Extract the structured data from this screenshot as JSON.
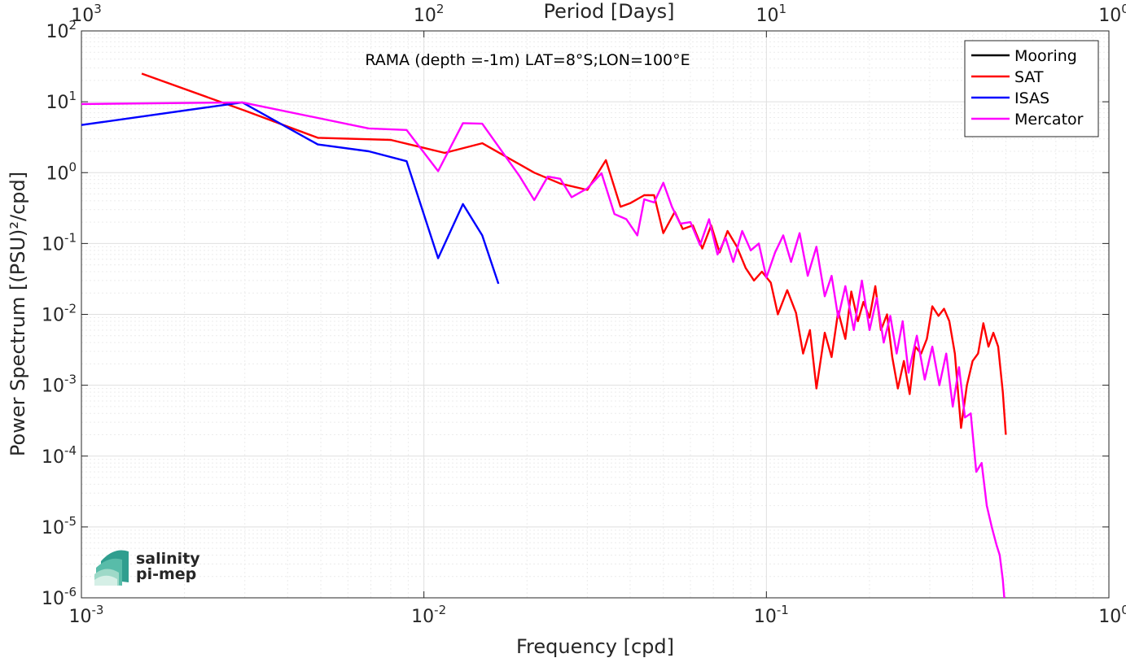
{
  "chart_data": {
    "type": "line",
    "title": "RAMA (depth =-1m) LAT=8°S;LON=100°E",
    "xlabel": "Frequency [cpd]",
    "ylabel": "Power Spectrum [(PSU)²/cpd]",
    "top_xlabel": "Period [Days]",
    "xscale": "log",
    "yscale": "log",
    "xlim": [
      0.001,
      1
    ],
    "ylim": [
      1e-06,
      100
    ],
    "grid": true,
    "legend_position": "top-right",
    "x_ticks": [
      {
        "value": 0.001,
        "base": "10",
        "exp": "-3"
      },
      {
        "value": 0.01,
        "base": "10",
        "exp": "-2"
      },
      {
        "value": 0.1,
        "base": "10",
        "exp": "-1"
      },
      {
        "value": 1,
        "base": "10",
        "exp": "0"
      }
    ],
    "top_ticks": [
      {
        "value": 0.001,
        "base": "10",
        "exp": "3"
      },
      {
        "value": 0.01,
        "base": "10",
        "exp": "2"
      },
      {
        "value": 0.1,
        "base": "10",
        "exp": "1"
      },
      {
        "value": 1,
        "base": "10",
        "exp": "0"
      }
    ],
    "y_ticks": [
      {
        "value": 100,
        "base": "10",
        "exp": "2"
      },
      {
        "value": 10,
        "base": "10",
        "exp": "1"
      },
      {
        "value": 1,
        "base": "10",
        "exp": "0"
      },
      {
        "value": 0.1,
        "base": "10",
        "exp": "-1"
      },
      {
        "value": 0.01,
        "base": "10",
        "exp": "-2"
      },
      {
        "value": 0.001,
        "base": "10",
        "exp": "-3"
      },
      {
        "value": 0.0001,
        "base": "10",
        "exp": "-4"
      },
      {
        "value": 1e-05,
        "base": "10",
        "exp": "-5"
      },
      {
        "value": 1e-06,
        "base": "10",
        "exp": "-6"
      }
    ],
    "series": [
      {
        "name": "Mooring",
        "color": "#000000",
        "points": []
      },
      {
        "name": "SAT",
        "color": "#ff0000",
        "points": [
          [
            0.0015,
            25
          ],
          [
            0.003,
            7.5
          ],
          [
            0.0049,
            3.1
          ],
          [
            0.008,
            2.9
          ],
          [
            0.0115,
            1.9
          ],
          [
            0.0148,
            2.6
          ],
          [
            0.021,
            1
          ],
          [
            0.025,
            0.7
          ],
          [
            0.03,
            0.57
          ],
          [
            0.034,
            1.5
          ],
          [
            0.0375,
            0.33
          ],
          [
            0.04,
            0.37
          ],
          [
            0.044,
            0.48
          ],
          [
            0.047,
            0.48
          ],
          [
            0.05,
            0.14
          ],
          [
            0.054,
            0.28
          ],
          [
            0.057,
            0.16
          ],
          [
            0.061,
            0.18
          ],
          [
            0.065,
            0.085
          ],
          [
            0.069,
            0.18
          ],
          [
            0.073,
            0.075
          ],
          [
            0.077,
            0.15
          ],
          [
            0.082,
            0.09
          ],
          [
            0.087,
            0.045
          ],
          [
            0.092,
            0.03
          ],
          [
            0.097,
            0.04
          ],
          [
            0.103,
            0.028
          ],
          [
            0.108,
            0.01
          ],
          [
            0.115,
            0.022
          ],
          [
            0.122,
            0.0105
          ],
          [
            0.128,
            0.0028
          ],
          [
            0.134,
            0.006
          ],
          [
            0.14,
            0.0009
          ],
          [
            0.148,
            0.0055
          ],
          [
            0.155,
            0.0025
          ],
          [
            0.162,
            0.011
          ],
          [
            0.17,
            0.0045
          ],
          [
            0.177,
            0.021
          ],
          [
            0.185,
            0.008
          ],
          [
            0.192,
            0.015
          ],
          [
            0.2,
            0.009
          ],
          [
            0.208,
            0.025
          ],
          [
            0.216,
            0.006
          ],
          [
            0.225,
            0.01
          ],
          [
            0.233,
            0.0025
          ],
          [
            0.242,
            0.0009
          ],
          [
            0.252,
            0.0022
          ],
          [
            0.262,
            0.00075
          ],
          [
            0.272,
            0.0035
          ],
          [
            0.283,
            0.0028
          ],
          [
            0.294,
            0.0045
          ],
          [
            0.305,
            0.013
          ],
          [
            0.318,
            0.0095
          ],
          [
            0.33,
            0.012
          ],
          [
            0.342,
            0.008
          ],
          [
            0.355,
            0.0028
          ],
          [
            0.37,
            0.00025
          ],
          [
            0.385,
            0.001
          ],
          [
            0.4,
            0.0022
          ],
          [
            0.415,
            0.0028
          ],
          [
            0.43,
            0.0075
          ],
          [
            0.445,
            0.0035
          ],
          [
            0.46,
            0.0055
          ],
          [
            0.475,
            0.0035
          ],
          [
            0.49,
            0.0008
          ],
          [
            0.5,
            0.0002
          ]
        ]
      },
      {
        "name": "ISAS",
        "color": "#0000ff",
        "points": [
          [
            0.001,
            4.7
          ],
          [
            0.00295,
            9.8
          ],
          [
            0.0049,
            2.5
          ],
          [
            0.0069,
            2
          ],
          [
            0.0089,
            1.45
          ],
          [
            0.011,
            0.062
          ],
          [
            0.013,
            0.36
          ],
          [
            0.0148,
            0.13
          ],
          [
            0.0165,
            0.027
          ]
        ]
      },
      {
        "name": "Mercator",
        "color": "#ff00ff",
        "points": [
          [
            0.001,
            9.3
          ],
          [
            0.00295,
            9.8
          ],
          [
            0.0069,
            4.2
          ],
          [
            0.0089,
            4
          ],
          [
            0.011,
            1.05
          ],
          [
            0.013,
            5
          ],
          [
            0.0148,
            4.9
          ],
          [
            0.019,
            0.9
          ],
          [
            0.021,
            0.41
          ],
          [
            0.023,
            0.88
          ],
          [
            0.025,
            0.82
          ],
          [
            0.027,
            0.45
          ],
          [
            0.03,
            0.6
          ],
          [
            0.033,
            0.98
          ],
          [
            0.036,
            0.26
          ],
          [
            0.039,
            0.22
          ],
          [
            0.042,
            0.13
          ],
          [
            0.044,
            0.42
          ],
          [
            0.047,
            0.38
          ],
          [
            0.05,
            0.72
          ],
          [
            0.053,
            0.33
          ],
          [
            0.056,
            0.19
          ],
          [
            0.06,
            0.2
          ],
          [
            0.064,
            0.095
          ],
          [
            0.068,
            0.22
          ],
          [
            0.072,
            0.07
          ],
          [
            0.076,
            0.12
          ],
          [
            0.08,
            0.055
          ],
          [
            0.085,
            0.15
          ],
          [
            0.09,
            0.08
          ],
          [
            0.095,
            0.1
          ],
          [
            0.1,
            0.033
          ],
          [
            0.106,
            0.075
          ],
          [
            0.112,
            0.13
          ],
          [
            0.118,
            0.055
          ],
          [
            0.125,
            0.14
          ],
          [
            0.132,
            0.035
          ],
          [
            0.14,
            0.09
          ],
          [
            0.148,
            0.018
          ],
          [
            0.155,
            0.035
          ],
          [
            0.162,
            0.009
          ],
          [
            0.17,
            0.025
          ],
          [
            0.18,
            0.006
          ],
          [
            0.19,
            0.03
          ],
          [
            0.2,
            0.006
          ],
          [
            0.21,
            0.017
          ],
          [
            0.22,
            0.004
          ],
          [
            0.23,
            0.0095
          ],
          [
            0.24,
            0.0028
          ],
          [
            0.25,
            0.008
          ],
          [
            0.26,
            0.0015
          ],
          [
            0.275,
            0.005
          ],
          [
            0.29,
            0.0012
          ],
          [
            0.305,
            0.0035
          ],
          [
            0.32,
            0.001
          ],
          [
            0.335,
            0.0028
          ],
          [
            0.35,
            0.0005
          ],
          [
            0.365,
            0.0018
          ],
          [
            0.38,
            0.00035
          ],
          [
            0.395,
            0.0004
          ],
          [
            0.41,
            6e-05
          ],
          [
            0.425,
            8e-05
          ],
          [
            0.44,
            2e-05
          ],
          [
            0.455,
            1e-05
          ],
          [
            0.47,
            5.5e-06
          ],
          [
            0.48,
            4e-06
          ],
          [
            0.49,
            1.8e-06
          ],
          [
            0.495,
            1e-06
          ]
        ]
      }
    ]
  },
  "logo": {
    "line1": "salinity",
    "line2": "pi-mep"
  }
}
